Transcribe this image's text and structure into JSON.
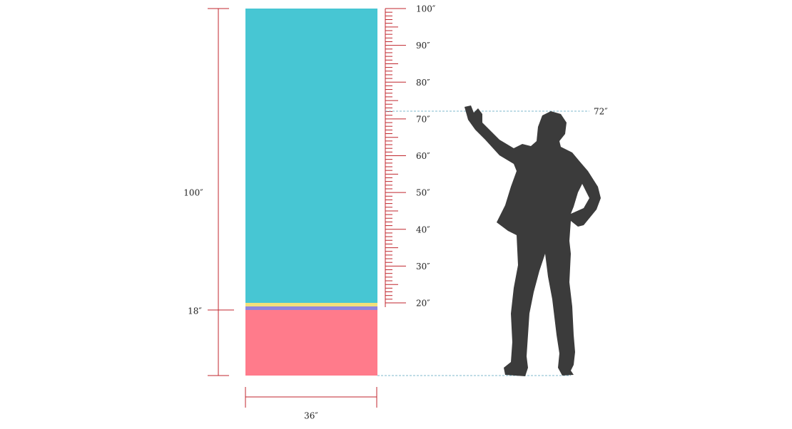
{
  "dimensions": {
    "height": "100″",
    "base": "18″",
    "width": "36″",
    "reach": "72″"
  },
  "ruler": {
    "labels": [
      "20″",
      "30″",
      "40″",
      "50″",
      "60″",
      "70″",
      "80″",
      "90″",
      "100″"
    ]
  }
}
